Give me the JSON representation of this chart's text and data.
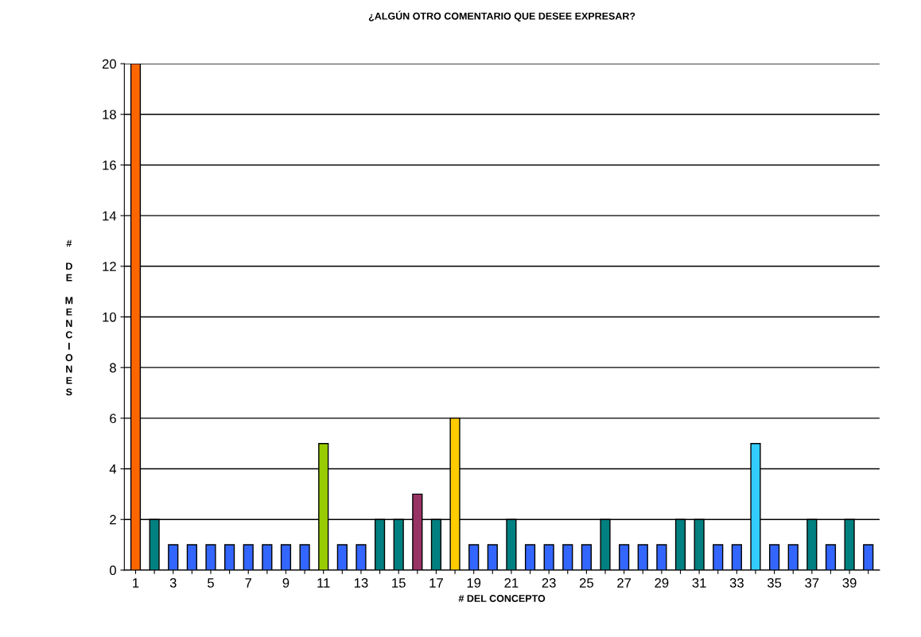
{
  "chart_data": {
    "type": "bar",
    "title": "¿ALGÚN OTRO COMENTARIO QUE DESEE EXPRESAR?",
    "xlabel": "# DEL CONCEPTO",
    "ylabel": "# DE MENCIONES",
    "categories": [
      "1",
      null,
      "3",
      null,
      "5",
      null,
      "7",
      null,
      "9",
      null,
      "11",
      null,
      "13",
      null,
      "15",
      null,
      "17",
      null,
      "19",
      null,
      "21",
      null,
      "23",
      null,
      "25",
      null,
      "27",
      null,
      "29",
      null,
      "31",
      null,
      "33",
      null,
      "35",
      null,
      "37",
      null,
      "39",
      null
    ],
    "values": [
      20,
      2,
      1,
      1,
      1,
      1,
      1,
      1,
      1,
      1,
      5,
      1,
      1,
      2,
      2,
      3,
      2,
      6,
      1,
      1,
      2,
      1,
      1,
      1,
      1,
      2,
      1,
      1,
      1,
      2,
      2,
      1,
      1,
      5,
      1,
      1,
      2,
      1,
      2,
      1
    ],
    "colors": [
      "#ff6600",
      "#008080",
      "#3366ff",
      "#3366ff",
      "#3366ff",
      "#3366ff",
      "#3366ff",
      "#3366ff",
      "#3366ff",
      "#3366ff",
      "#99cc00",
      "#3366ff",
      "#3366ff",
      "#008080",
      "#008080",
      "#993366",
      "#008080",
      "#ffcc00",
      "#3366ff",
      "#3366ff",
      "#008080",
      "#3366ff",
      "#3366ff",
      "#3366ff",
      "#3366ff",
      "#008080",
      "#3366ff",
      "#3366ff",
      "#3366ff",
      "#008080",
      "#008080",
      "#3366ff",
      "#3366ff",
      "#33ccff",
      "#3366ff",
      "#3366ff",
      "#008080",
      "#3366ff",
      "#008080",
      "#3366ff"
    ],
    "ylim": [
      0,
      20
    ],
    "yticks": [
      0,
      2,
      4,
      6,
      8,
      10,
      12,
      14,
      16,
      18,
      20
    ],
    "grid": "y",
    "legend": false
  }
}
